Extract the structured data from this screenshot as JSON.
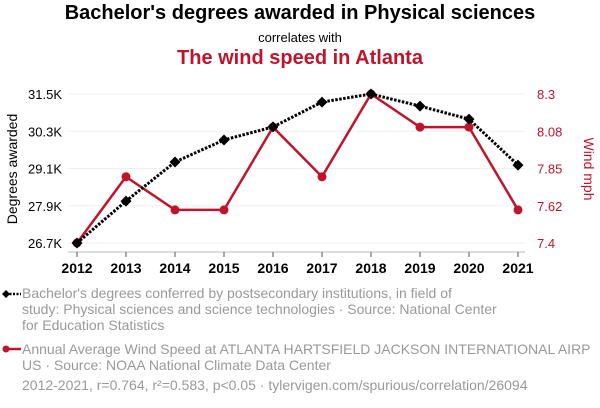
{
  "header": {
    "title": "Bachelor's degrees awarded in Physical sciences",
    "connector": "correlates with",
    "subtitle": "The wind speed in Atlanta"
  },
  "colors": {
    "series1": "#000000",
    "series2": "#c0142c",
    "grid": "#eeeeee",
    "muted": "#999999"
  },
  "chart_data": {
    "type": "line",
    "title": "Bachelor's degrees awarded in Physical sciences correlates with The wind speed in Atlanta",
    "x": [
      2012,
      2013,
      2014,
      2015,
      2016,
      2017,
      2018,
      2019,
      2020,
      2021
    ],
    "x_tick_labels": [
      "2012",
      "2013",
      "2014",
      "2015",
      "2016",
      "2017",
      "2018",
      "2019",
      "2020",
      "2021"
    ],
    "series": [
      {
        "name": "Bachelor's degrees conferred by postsecondary institutions, in field of study: Physical sciences and science technologies",
        "axis": "left",
        "marker": "diamond",
        "line": "dotted",
        "values": [
          26700,
          28050,
          29310,
          30020,
          30440,
          31240,
          31500,
          31110,
          30690,
          29210
        ]
      },
      {
        "name": "Annual Average Wind Speed at ATLANTA HARTSFIELD JACKSON INTERNATIONAL AIRPORT, US",
        "axis": "right",
        "marker": "circle",
        "line": "solid",
        "values": [
          7.4,
          7.8,
          7.6,
          7.6,
          8.1,
          7.8,
          8.3,
          8.1,
          8.1,
          7.6
        ]
      }
    ],
    "y_left": {
      "label": "Degrees awarded",
      "range": [
        26700,
        31500
      ],
      "ticks": [
        "26.7K",
        "27.9K",
        "29.1K",
        "30.3K",
        "31.5K"
      ]
    },
    "y_right": {
      "label": "Wind mph",
      "range": [
        7.4,
        8.3
      ],
      "ticks": [
        "7.4",
        "7.62",
        "7.85",
        "8.08",
        "8.3"
      ]
    },
    "grid": true
  },
  "legend": {
    "series1_lines": [
      "Bachelor's degrees conferred by postsecondary institutions, in field of",
      "study: Physical sciences and science technologies · Source: National Center",
      "for Education Statistics"
    ],
    "series2_lines": [
      "Annual Average Wind Speed at ATLANTA HARTSFIELD JACKSON INTERNATIONAL AIRP",
      "US · Source: NOAA National Climate Data Center"
    ]
  },
  "footer": "2012-2021, r=0.764, r²=0.583, p<0.05 · tylervigen.com/spurious/correlation/26094"
}
